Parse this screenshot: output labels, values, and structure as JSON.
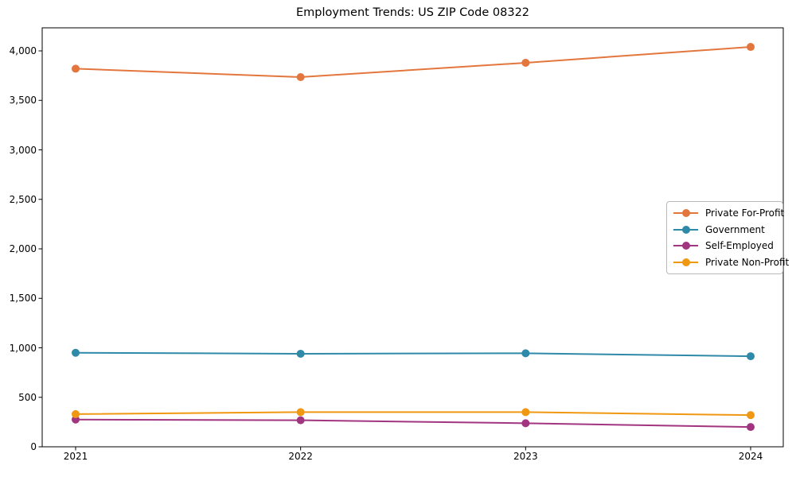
{
  "chart_data": {
    "type": "line",
    "title": "Employment Trends: US ZIP Code 08322",
    "xlabel": "",
    "ylabel": "",
    "categories": [
      "2021",
      "2022",
      "2023",
      "2024"
    ],
    "series": [
      {
        "name": "Private For-Profit",
        "color": "#e3763c",
        "values": [
          3820,
          3735,
          3880,
          4040
        ]
      },
      {
        "name": "Government",
        "color": "#2f89a8",
        "values": [
          950,
          940,
          945,
          915
        ]
      },
      {
        "name": "Self-Employed",
        "color": "#a23580",
        "values": [
          275,
          268,
          238,
          200
        ]
      },
      {
        "name": "Private Non-Profit",
        "color": "#f09811",
        "values": [
          330,
          350,
          350,
          320
        ]
      }
    ],
    "ylim": [
      0,
      4233
    ],
    "yticks": [
      0,
      500,
      1000,
      1500,
      2000,
      2500,
      3000,
      3500,
      4000
    ],
    "ytick_labels": [
      "0",
      "500",
      "1,000",
      "1,500",
      "2,000",
      "2,500",
      "3,000",
      "3,500",
      "4,000"
    ],
    "grid": false,
    "legend_position": "center-right",
    "marker": "circle",
    "axis_color": "#000000",
    "background_color": "#ffffff"
  }
}
